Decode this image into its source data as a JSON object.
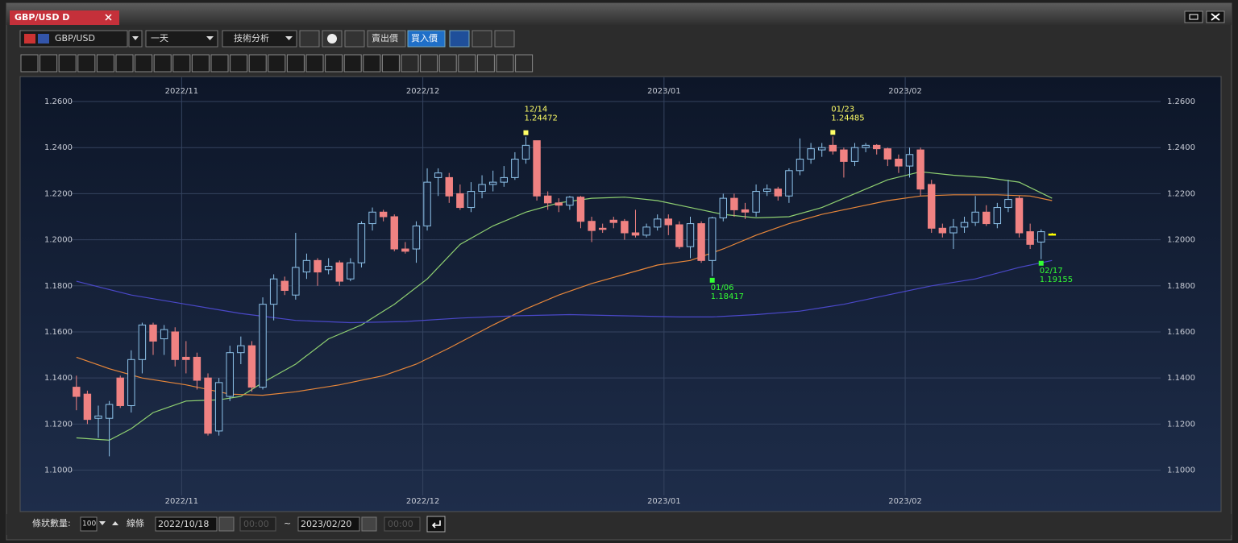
{
  "window": {
    "tab": "GBP/USD D"
  },
  "toolbar": {
    "symbol": "GBP/USD",
    "period": "一天",
    "analysis": "技術分析",
    "bid": "賣出價",
    "ask": "買入價"
  },
  "chart": {
    "type": "candlestick",
    "xlim": [
      -0.5,
      98.9
    ],
    "ylim": [
      1.089,
      1.2705
    ],
    "xticks": [
      {
        "value": 10,
        "label": "2022/11"
      },
      {
        "value": 32,
        "label": "2022/12"
      },
      {
        "value": 54,
        "label": "2023/01"
      },
      {
        "value": 76,
        "label": "2023/02"
      }
    ],
    "yticks": [
      {
        "value": 1.1,
        "label": "1.1000"
      },
      {
        "value": 1.12,
        "label": "1.1200"
      },
      {
        "value": 1.14,
        "label": "1.1400"
      },
      {
        "value": 1.16,
        "label": "1.1600"
      },
      {
        "value": 1.18,
        "label": "1.1800"
      },
      {
        "value": 1.2,
        "label": "1.2000"
      },
      {
        "value": 1.22,
        "label": "1.2200"
      },
      {
        "value": 1.24,
        "label": "1.2400"
      },
      {
        "value": 1.26,
        "label": "1.2600"
      }
    ],
    "grid": true,
    "bull_color": "#8ec3ea",
    "bear_color": "#f08282",
    "last_color": "#ffff00",
    "candles": [
      [
        1.136,
        1.141,
        1.126,
        1.132
      ],
      [
        1.133,
        1.1345,
        1.12,
        1.122
      ],
      [
        1.1225,
        1.128,
        1.114,
        1.1235
      ],
      [
        1.1225,
        1.13,
        1.106,
        1.1285
      ],
      [
        1.14,
        1.141,
        1.127,
        1.128
      ],
      [
        1.128,
        1.152,
        1.125,
        1.148
      ],
      [
        1.148,
        1.164,
        1.142,
        1.163
      ],
      [
        1.163,
        1.164,
        1.15,
        1.156
      ],
      [
        1.157,
        1.163,
        1.15,
        1.161
      ],
      [
        1.16,
        1.162,
        1.145,
        1.148
      ],
      [
        1.149,
        1.156,
        1.142,
        1.148
      ],
      [
        1.149,
        1.151,
        1.135,
        1.139
      ],
      [
        1.14,
        1.142,
        1.115,
        1.116
      ],
      [
        1.117,
        1.14,
        1.115,
        1.138
      ],
      [
        1.132,
        1.154,
        1.13,
        1.151
      ],
      [
        1.151,
        1.158,
        1.146,
        1.154
      ],
      [
        1.154,
        1.156,
        1.134,
        1.136
      ],
      [
        1.136,
        1.175,
        1.135,
        1.172
      ],
      [
        1.172,
        1.185,
        1.165,
        1.183
      ],
      [
        1.182,
        1.184,
        1.176,
        1.178
      ],
      [
        1.176,
        1.203,
        1.174,
        1.188
      ],
      [
        1.186,
        1.194,
        1.183,
        1.191
      ],
      [
        1.191,
        1.192,
        1.18,
        1.186
      ],
      [
        1.187,
        1.192,
        1.185,
        1.1885
      ],
      [
        1.19,
        1.191,
        1.18,
        1.182
      ],
      [
        1.183,
        1.192,
        1.182,
        1.19
      ],
      [
        1.19,
        1.208,
        1.188,
        1.207
      ],
      [
        1.207,
        1.214,
        1.204,
        1.212
      ],
      [
        1.212,
        1.213,
        1.208,
        1.21
      ],
      [
        1.21,
        1.211,
        1.195,
        1.196
      ],
      [
        1.196,
        1.199,
        1.194,
        1.195
      ],
      [
        1.196,
        1.208,
        1.19,
        1.206
      ],
      [
        1.206,
        1.231,
        1.204,
        1.225
      ],
      [
        1.227,
        1.231,
        1.219,
        1.229
      ],
      [
        1.227,
        1.229,
        1.216,
        1.219
      ],
      [
        1.22,
        1.224,
        1.213,
        1.214
      ],
      [
        1.214,
        1.225,
        1.212,
        1.221
      ],
      [
        1.221,
        1.228,
        1.218,
        1.224
      ],
      [
        1.224,
        1.23,
        1.221,
        1.225
      ],
      [
        1.225,
        1.232,
        1.223,
        1.227
      ],
      [
        1.227,
        1.238,
        1.226,
        1.235
      ],
      [
        1.235,
        1.24472,
        1.233,
        1.241
      ],
      [
        1.243,
        1.243,
        1.217,
        1.219
      ],
      [
        1.219,
        1.221,
        1.213,
        1.216
      ],
      [
        1.216,
        1.218,
        1.212,
        1.215
      ],
      [
        1.215,
        1.219,
        1.213,
        1.2185
      ],
      [
        1.2185,
        1.219,
        1.205,
        1.208
      ],
      [
        1.208,
        1.21,
        1.199,
        1.204
      ],
      [
        1.205,
        1.207,
        1.203,
        1.2045
      ],
      [
        1.2085,
        1.21,
        1.205,
        1.2075
      ],
      [
        1.208,
        1.209,
        1.2,
        1.203
      ],
      [
        1.203,
        1.213,
        1.201,
        1.202
      ],
      [
        1.202,
        1.207,
        1.201,
        1.2055
      ],
      [
        1.2055,
        1.211,
        1.204,
        1.209
      ],
      [
        1.209,
        1.211,
        1.202,
        1.2065
      ],
      [
        1.2065,
        1.208,
        1.196,
        1.197
      ],
      [
        1.197,
        1.21,
        1.192,
        1.207
      ],
      [
        1.207,
        1.208,
        1.19,
        1.191
      ],
      [
        1.191,
        1.21,
        1.18417,
        1.2095
      ],
      [
        1.2095,
        1.22,
        1.208,
        1.218
      ],
      [
        1.218,
        1.22,
        1.21,
        1.213
      ],
      [
        1.213,
        1.216,
        1.209,
        1.212
      ],
      [
        1.212,
        1.224,
        1.21,
        1.221
      ],
      [
        1.221,
        1.224,
        1.219,
        1.222
      ],
      [
        1.222,
        1.223,
        1.217,
        1.219
      ],
      [
        1.219,
        1.231,
        1.216,
        1.23
      ],
      [
        1.23,
        1.244,
        1.228,
        1.235
      ],
      [
        1.235,
        1.242,
        1.233,
        1.2395
      ],
      [
        1.239,
        1.242,
        1.236,
        1.24
      ],
      [
        1.241,
        1.24485,
        1.237,
        1.2385
      ],
      [
        1.239,
        1.24,
        1.227,
        1.234
      ],
      [
        1.234,
        1.242,
        1.232,
        1.24
      ],
      [
        1.24,
        1.242,
        1.238,
        1.241
      ],
      [
        1.241,
        1.2415,
        1.237,
        1.2395
      ],
      [
        1.2395,
        1.24,
        1.232,
        1.235
      ],
      [
        1.235,
        1.237,
        1.229,
        1.232
      ],
      [
        1.232,
        1.24,
        1.227,
        1.237
      ],
      [
        1.239,
        1.24,
        1.219,
        1.222
      ],
      [
        1.224,
        1.226,
        1.203,
        1.205
      ],
      [
        1.205,
        1.207,
        1.201,
        1.203
      ],
      [
        1.203,
        1.209,
        1.196,
        1.2055
      ],
      [
        1.2055,
        1.21,
        1.203,
        1.2075
      ],
      [
        1.2075,
        1.219,
        1.206,
        1.212
      ],
      [
        1.212,
        1.215,
        1.206,
        1.207
      ],
      [
        1.207,
        1.216,
        1.205,
        1.214
      ],
      [
        1.214,
        1.226,
        1.212,
        1.2175
      ],
      [
        1.218,
        1.219,
        1.201,
        1.203
      ],
      [
        1.2035,
        1.207,
        1.196,
        1.198
      ],
      [
        1.199,
        1.2045,
        1.19155,
        1.2035
      ],
      [
        1.2025,
        1.203,
        1.202,
        1.2025
      ]
    ],
    "series": [
      {
        "color": "#8fd071",
        "x": [
          0,
          3,
          5,
          7,
          10,
          13,
          15,
          17,
          20,
          23,
          26,
          29,
          32,
          35,
          38,
          41,
          44,
          47,
          50,
          53,
          56,
          59,
          62,
          65,
          68,
          71,
          74,
          77,
          80,
          83,
          86,
          89
        ],
        "values": [
          1.114,
          1.113,
          1.118,
          1.125,
          1.13,
          1.1305,
          1.132,
          1.138,
          1.146,
          1.157,
          1.163,
          1.172,
          1.183,
          1.198,
          1.206,
          1.212,
          1.216,
          1.218,
          1.2185,
          1.217,
          1.214,
          1.211,
          1.2095,
          1.21,
          1.214,
          1.22,
          1.226,
          1.2295,
          1.228,
          1.227,
          1.225,
          1.218
        ]
      },
      {
        "color": "#e8873a",
        "x": [
          0,
          3,
          6,
          10,
          14,
          17,
          20,
          24,
          28,
          31,
          34,
          38,
          41,
          44,
          47,
          50,
          53,
          56,
          59,
          62,
          65,
          68,
          71,
          74,
          77,
          80,
          84,
          87,
          89
        ],
        "values": [
          1.149,
          1.144,
          1.14,
          1.137,
          1.133,
          1.1325,
          1.134,
          1.137,
          1.141,
          1.146,
          1.153,
          1.163,
          1.17,
          1.176,
          1.181,
          1.185,
          1.189,
          1.191,
          1.196,
          1.202,
          1.207,
          1.211,
          1.214,
          1.217,
          1.219,
          1.2195,
          1.2195,
          1.219,
          1.217
        ]
      },
      {
        "color": "#4a48c8",
        "x": [
          0,
          5,
          10,
          15,
          20,
          25,
          30,
          35,
          40,
          45,
          50,
          55,
          58,
          62,
          66,
          70,
          74,
          78,
          82,
          86,
          89
        ],
        "values": [
          1.182,
          1.176,
          1.172,
          1.168,
          1.165,
          1.164,
          1.1645,
          1.166,
          1.167,
          1.1675,
          1.167,
          1.1665,
          1.1665,
          1.1675,
          1.169,
          1.172,
          1.176,
          1.18,
          1.183,
          1.188,
          1.191
        ]
      }
    ],
    "annotations": [
      {
        "date": "12/14",
        "value": 1.24472
      },
      {
        "date": "01/23",
        "value": 1.24485
      },
      {
        "date": "01/06",
        "value": 1.18417
      },
      {
        "date": "02/17",
        "value": 1.19155
      }
    ]
  },
  "footer": {
    "count_label": "條狀數量:",
    "count": "100",
    "line_label": "線條",
    "from_date": "2022/10/18",
    "from_time": "00:00",
    "separator": "~",
    "to_date": "2023/02/20",
    "to_time": "00:00"
  }
}
